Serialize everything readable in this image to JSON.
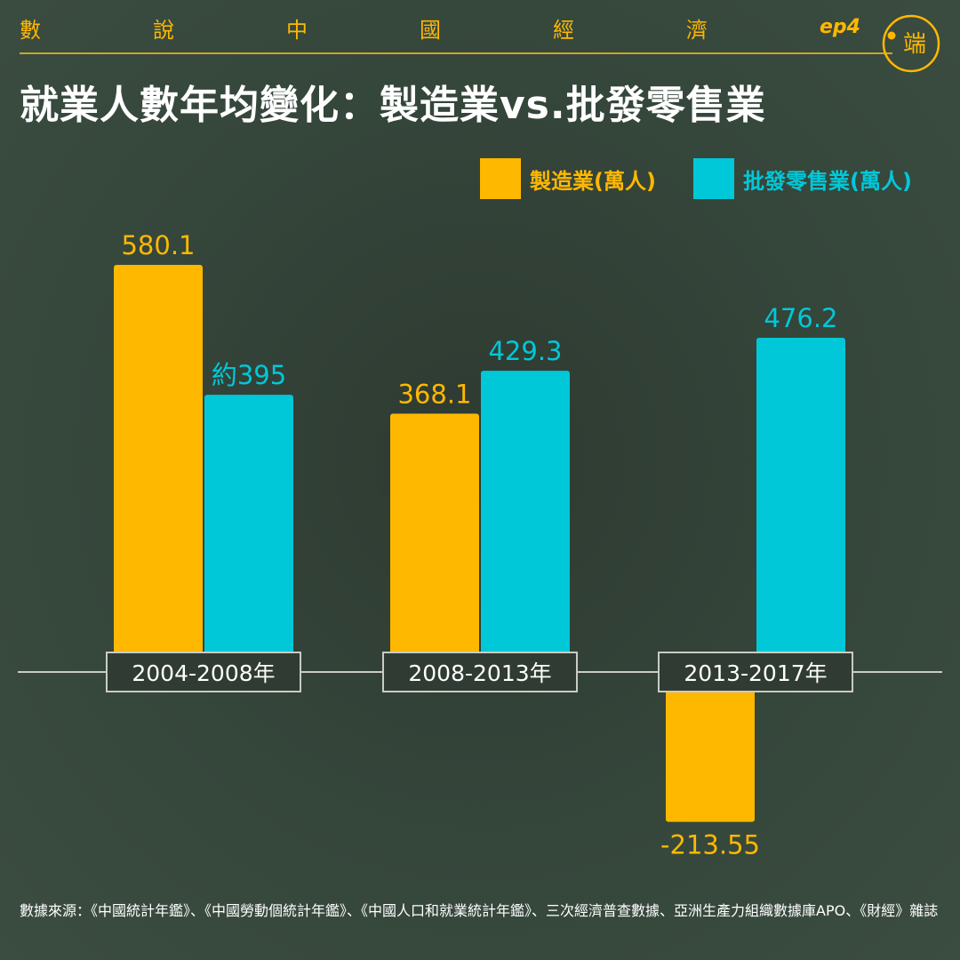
{
  "header": {
    "series_title_chars": [
      "數",
      "說",
      "中",
      "國",
      "經",
      "濟"
    ],
    "episode": "ep4",
    "logo_text": "端"
  },
  "title": "就業人數年均變化：製造業vs.批發零售業",
  "colors": {
    "manufacturing": "#ffb800",
    "wholesale_retail": "#00c8d8",
    "background": "#35463b",
    "axis": "#c8ccc4",
    "header_gold": "#ffb800"
  },
  "chart_data": {
    "type": "bar",
    "categories": [
      "2004-2008年",
      "2008-2013年",
      "2013-2017年"
    ],
    "series": [
      {
        "name": "製造業(萬人)",
        "values": [
          580.1,
          368.1,
          -213.55
        ],
        "labels": [
          "580.1",
          "368.1",
          "-213.55"
        ]
      },
      {
        "name": "批發零售業(萬人)",
        "values": [
          395,
          429.3,
          476.2
        ],
        "labels": [
          "約395",
          "429.3",
          "476.2"
        ]
      }
    ],
    "title": "就業人數年均變化：製造業vs.批發零售業",
    "legend_position": "top-right",
    "grid": false
  },
  "source_note": "數據來源：《中國統計年鑑》、《中國勞動個統計年鑑》、《中國人口和就業統計年鑑》、三次經濟普查數據、亞洲生產力組織數據庫APO、《財經》雜誌"
}
